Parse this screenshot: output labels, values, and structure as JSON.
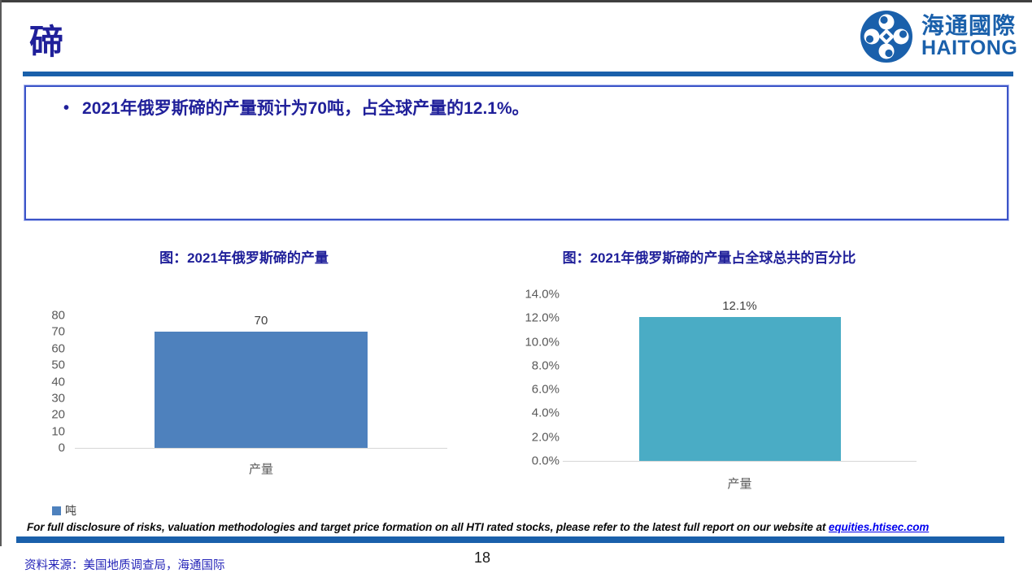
{
  "header": {
    "title": "碲",
    "logo_cn": "海通國際",
    "logo_en": "HAITONG"
  },
  "bullet": {
    "marker": "•",
    "text": "2021年俄罗斯碲的产量预计为70吨，占全球产量的12.1%。"
  },
  "colors": {
    "navy_text": "#20209A",
    "brand_blue": "#1A60AB",
    "box_border_blue": "#3D55C8",
    "left_bar": "#4E81BD",
    "right_bar": "#4AACC5",
    "axis_gray": "#595959"
  },
  "chart_data": [
    {
      "type": "bar",
      "title": "图：2021年俄罗斯碲的产量",
      "categories": [
        "产量"
      ],
      "values": [
        70
      ],
      "value_labels": [
        "70"
      ],
      "ylim": [
        0,
        80
      ],
      "yticks": [
        "80",
        "70",
        "60",
        "50",
        "40",
        "30",
        "20",
        "10",
        "0"
      ],
      "legend": [
        "吨"
      ],
      "legend_position": "bottom-left",
      "bar_color": "#4E81BD",
      "grid": false,
      "xlabel": "",
      "ylabel": ""
    },
    {
      "type": "bar",
      "title": "图：2021年俄罗斯碲的产量占全球总共的百分比",
      "categories": [
        "产量"
      ],
      "values": [
        12.1
      ],
      "value_labels": [
        "12.1%"
      ],
      "ylim": [
        0,
        14
      ],
      "yticks": [
        "14.0%",
        "12.0%",
        "10.0%",
        "8.0%",
        "6.0%",
        "4.0%",
        "2.0%",
        "0.0%"
      ],
      "legend": [],
      "bar_color": "#4AACC5",
      "grid": false,
      "xlabel": "",
      "ylabel": ""
    }
  ],
  "footer": {
    "disclaimer_text": "For full disclosure of risks, valuation methodologies and target price formation on all HTI rated stocks, please refer to the latest full report on our website at ",
    "disclaimer_link": "equities.htisec.com",
    "source": "资料来源：美国地质调查局，海通国际",
    "page_number": "18"
  }
}
